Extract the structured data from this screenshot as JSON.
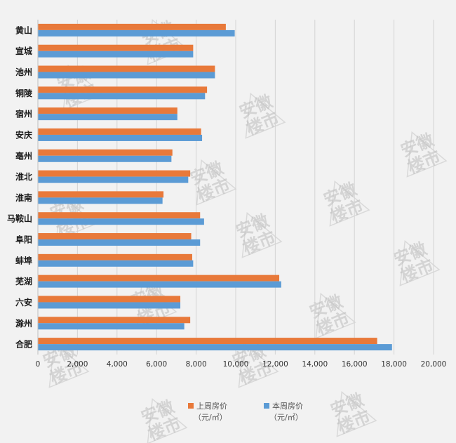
{
  "chart_data": {
    "type": "bar",
    "orientation": "horizontal",
    "categories": [
      "黄山",
      "宣城",
      "池州",
      "铜陵",
      "宿州",
      "安庆",
      "亳州",
      "淮北",
      "淮南",
      "马鞍山",
      "阜阳",
      "蚌埠",
      "芜湖",
      "六安",
      "滁州",
      "合肥"
    ],
    "series": [
      {
        "name": "上周房价",
        "name_unit": "（元/㎡）",
        "color": "#e8793a",
        "values": [
          9500,
          7850,
          8950,
          8550,
          7050,
          8250,
          6800,
          7700,
          6350,
          8200,
          7750,
          7800,
          12200,
          7200,
          7700,
          17150
        ]
      },
      {
        "name": "本周房价",
        "name_unit": "（元/㎡）",
        "color": "#5b9bd5",
        "values": [
          9950,
          7850,
          8950,
          8450,
          7050,
          8300,
          6750,
          7600,
          6300,
          8400,
          8200,
          7850,
          12300,
          7200,
          7400,
          17900
        ]
      }
    ],
    "xlim": [
      0,
      20000
    ],
    "xticks": [
      "0",
      "2,000",
      "4,000",
      "6,000",
      "8,000",
      "10,000",
      "12,000",
      "14,000",
      "16,000",
      "18,000",
      "20,000"
    ],
    "grid": true,
    "legend_position": "bottom-center",
    "watermark": "安徽楼市"
  }
}
